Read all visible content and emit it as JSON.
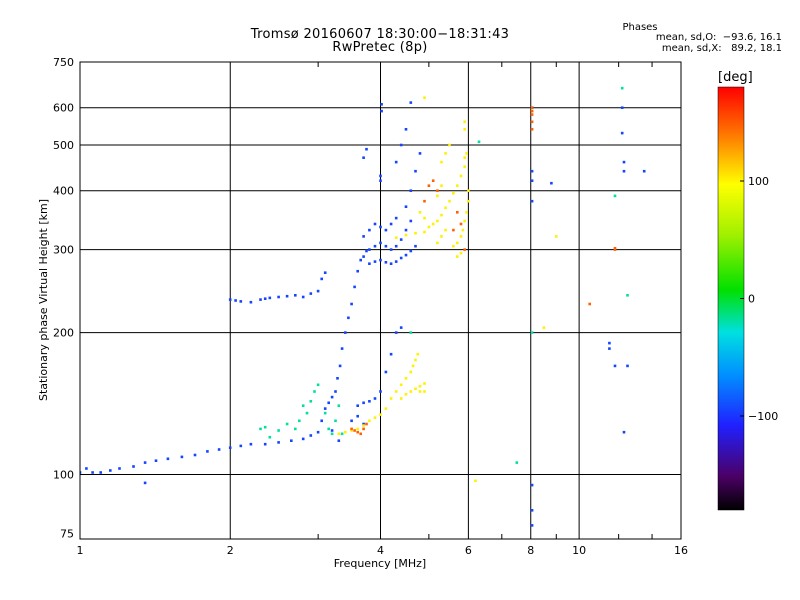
{
  "header": {
    "title_line1": "Tromsø 20160607 18:30:00−18:31:43",
    "title_line2": "RwPretec (8p)",
    "stats_title": "Phases",
    "stats_o": "mean, sd,O:  −93.6, 16.1",
    "stats_x": "mean, sd,X:   89.2, 18.1"
  },
  "colorbar": {
    "label": "[deg]",
    "ticks": [
      "100",
      "0",
      "−100"
    ],
    "tick_values": [
      100,
      0,
      -100
    ],
    "range": [
      -180,
      180
    ]
  },
  "chart_data": {
    "type": "scatter",
    "xlabel": "Frequency [MHz]",
    "ylabel": "Stationary phase Virtual Height [km]",
    "x_scale": "log",
    "y_scale": "log",
    "xlim": [
      1,
      16
    ],
    "ylim": [
      73,
      750
    ],
    "x_ticks": [
      1,
      2,
      4,
      6,
      8,
      10,
      16
    ],
    "x_tick_labels": [
      "1",
      "2",
      "4",
      "6",
      "8",
      "10",
      "16"
    ],
    "y_ticks": [
      75,
      100,
      200,
      300,
      400,
      500,
      600,
      750
    ],
    "y_tick_labels": [
      "75",
      "100",
      "200",
      "300",
      "400",
      "500",
      "600",
      "750"
    ],
    "grid": true,
    "series": [
      {
        "phase_group": "O",
        "color_value": -95,
        "points": [
          [
            1.0,
            101
          ],
          [
            1.03,
            103
          ],
          [
            1.06,
            101
          ],
          [
            1.1,
            101
          ],
          [
            1.15,
            102
          ],
          [
            1.2,
            103
          ],
          [
            1.28,
            104
          ],
          [
            1.35,
            106
          ],
          [
            1.42,
            107
          ],
          [
            1.5,
            108
          ],
          [
            1.6,
            109
          ],
          [
            1.7,
            110
          ],
          [
            1.8,
            112
          ],
          [
            1.9,
            113
          ],
          [
            2.0,
            114
          ],
          [
            2.1,
            115
          ],
          [
            2.2,
            116
          ],
          [
            2.35,
            116
          ],
          [
            2.5,
            117
          ],
          [
            2.65,
            118
          ],
          [
            2.8,
            119
          ],
          [
            2.9,
            121
          ],
          [
            3.0,
            123
          ],
          [
            3.05,
            130
          ],
          [
            3.1,
            138
          ],
          [
            3.15,
            142
          ],
          [
            3.2,
            146
          ],
          [
            3.25,
            150
          ],
          [
            3.28,
            160
          ],
          [
            3.32,
            170
          ],
          [
            3.35,
            185
          ],
          [
            3.4,
            200
          ],
          [
            3.45,
            215
          ],
          [
            3.5,
            230
          ],
          [
            3.55,
            250
          ],
          [
            3.6,
            270
          ],
          [
            3.65,
            285
          ],
          [
            3.7,
            290
          ],
          [
            3.75,
            298
          ],
          [
            3.8,
            300
          ],
          [
            3.9,
            305
          ],
          [
            4.0,
            310
          ],
          [
            4.1,
            305
          ],
          [
            4.2,
            300
          ],
          [
            4.3,
            305
          ],
          [
            4.4,
            315
          ],
          [
            4.5,
            330
          ],
          [
            4.6,
            345
          ],
          [
            3.8,
            280
          ],
          [
            3.9,
            283
          ],
          [
            4.0,
            285
          ],
          [
            4.1,
            282
          ],
          [
            4.2,
            280
          ],
          [
            4.3,
            283
          ],
          [
            4.4,
            288
          ],
          [
            4.5,
            292
          ],
          [
            4.6,
            298
          ],
          [
            4.7,
            305
          ],
          [
            3.7,
            320
          ],
          [
            3.8,
            330
          ],
          [
            3.9,
            340
          ],
          [
            4.0,
            335
          ],
          [
            4.1,
            330
          ],
          [
            4.2,
            340
          ],
          [
            4.3,
            350
          ],
          [
            4.5,
            370
          ],
          [
            4.6,
            400
          ],
          [
            4.7,
            440
          ],
          [
            4.8,
            480
          ],
          [
            4.3,
            460
          ],
          [
            4.4,
            500
          ],
          [
            4.5,
            540
          ],
          [
            4.0,
            420
          ],
          [
            4.0,
            430
          ],
          [
            4.02,
            590
          ],
          [
            4.02,
            610
          ],
          [
            4.6,
            615
          ],
          [
            3.7,
            470
          ],
          [
            3.75,
            490
          ],
          [
            2.0,
            235
          ],
          [
            2.05,
            234
          ],
          [
            2.1,
            233
          ],
          [
            2.2,
            232
          ],
          [
            2.3,
            235
          ],
          [
            2.35,
            236
          ],
          [
            2.4,
            237
          ],
          [
            2.5,
            238
          ],
          [
            2.6,
            239
          ],
          [
            2.7,
            240
          ],
          [
            2.8,
            238
          ],
          [
            2.9,
            242
          ],
          [
            3.0,
            245
          ],
          [
            3.05,
            260
          ],
          [
            3.1,
            268
          ],
          [
            3.6,
            140
          ],
          [
            3.7,
            142
          ],
          [
            3.8,
            143
          ],
          [
            3.9,
            145
          ],
          [
            4.0,
            150
          ],
          [
            4.1,
            165
          ],
          [
            4.2,
            180
          ],
          [
            4.3,
            200
          ],
          [
            4.4,
            205
          ],
          [
            3.5,
            130
          ],
          [
            3.6,
            133
          ],
          [
            3.7,
            128
          ],
          [
            3.3,
            118
          ],
          [
            3.2,
            124
          ],
          [
            1.35,
            96
          ],
          [
            8.05,
            95
          ],
          [
            8.05,
            84
          ],
          [
            8.05,
            78
          ],
          [
            8.05,
            380
          ],
          [
            8.05,
            420
          ],
          [
            8.05,
            440
          ],
          [
            8.05,
            600
          ],
          [
            8.8,
            415
          ],
          [
            12.2,
            530
          ],
          [
            12.2,
            600
          ],
          [
            12.3,
            440
          ],
          [
            12.3,
            460
          ],
          [
            13.5,
            440
          ],
          [
            12.3,
            123
          ],
          [
            11.8,
            170
          ],
          [
            12.5,
            170
          ],
          [
            11.5,
            185
          ],
          [
            11.5,
            190
          ]
        ]
      },
      {
        "phase_group": "X",
        "color_value": 100,
        "points": [
          [
            3.3,
            122
          ],
          [
            3.4,
            123
          ],
          [
            3.5,
            124
          ],
          [
            3.6,
            125
          ],
          [
            3.7,
            127
          ],
          [
            3.8,
            130
          ],
          [
            3.9,
            132
          ],
          [
            4.0,
            134
          ],
          [
            4.1,
            138
          ],
          [
            4.2,
            145
          ],
          [
            4.3,
            150
          ],
          [
            4.4,
            155
          ],
          [
            4.5,
            160
          ],
          [
            4.6,
            165
          ],
          [
            4.65,
            170
          ],
          [
            4.7,
            175
          ],
          [
            4.75,
            180
          ],
          [
            4.4,
            145
          ],
          [
            4.5,
            148
          ],
          [
            4.6,
            150
          ],
          [
            4.7,
            152
          ],
          [
            4.8,
            154
          ],
          [
            4.9,
            156
          ],
          [
            4.8,
            150
          ],
          [
            4.9,
            150
          ],
          [
            4.3,
            318
          ],
          [
            4.5,
            322
          ],
          [
            4.7,
            325
          ],
          [
            4.9,
            327
          ],
          [
            5.0,
            335
          ],
          [
            5.1,
            340
          ],
          [
            5.2,
            345
          ],
          [
            5.3,
            355
          ],
          [
            5.4,
            368
          ],
          [
            5.5,
            380
          ],
          [
            5.6,
            395
          ],
          [
            5.7,
            410
          ],
          [
            5.8,
            430
          ],
          [
            5.9,
            450
          ],
          [
            5.9,
            470
          ],
          [
            5.95,
            480
          ],
          [
            5.6,
            305
          ],
          [
            5.7,
            310
          ],
          [
            5.8,
            320
          ],
          [
            5.85,
            330
          ],
          [
            5.9,
            345
          ],
          [
            5.95,
            360
          ],
          [
            6.0,
            380
          ],
          [
            6.0,
            400
          ],
          [
            5.7,
            290
          ],
          [
            5.8,
            295
          ],
          [
            5.2,
            310
          ],
          [
            5.3,
            320
          ],
          [
            5.4,
            330
          ],
          [
            5.2,
            390
          ],
          [
            5.3,
            410
          ],
          [
            5.3,
            460
          ],
          [
            5.4,
            480
          ],
          [
            5.5,
            500
          ],
          [
            4.9,
            630
          ],
          [
            5.9,
            540
          ],
          [
            5.9,
            560
          ],
          [
            4.9,
            350
          ],
          [
            4.8,
            360
          ],
          [
            6.2,
            97
          ],
          [
            9.0,
            320
          ],
          [
            8.5,
            205
          ]
        ]
      },
      {
        "phase_group": "mixed",
        "color_value": 150,
        "points": [
          [
            3.5,
            125
          ],
          [
            3.55,
            124
          ],
          [
            3.6,
            123
          ],
          [
            3.65,
            122
          ],
          [
            3.7,
            125
          ],
          [
            3.75,
            128
          ],
          [
            5.0,
            410
          ],
          [
            5.1,
            420
          ],
          [
            5.2,
            400
          ],
          [
            5.6,
            330
          ],
          [
            5.8,
            340
          ],
          [
            5.7,
            360
          ],
          [
            8.05,
            540
          ],
          [
            8.05,
            560
          ],
          [
            8.05,
            580
          ],
          [
            8.05,
            590
          ],
          [
            8.05,
            600
          ],
          [
            11.8,
            300
          ],
          [
            11.8,
            302
          ],
          [
            10.5,
            230
          ],
          [
            5.9,
            300
          ],
          [
            4.9,
            380
          ]
        ]
      },
      {
        "phase_group": "cyan",
        "color_value": -20,
        "points": [
          [
            2.9,
            143
          ],
          [
            2.95,
            150
          ],
          [
            3.0,
            155
          ],
          [
            2.85,
            135
          ],
          [
            2.8,
            140
          ],
          [
            2.75,
            130
          ],
          [
            2.7,
            125
          ],
          [
            2.6,
            128
          ],
          [
            2.5,
            124
          ],
          [
            2.4,
            120
          ],
          [
            3.1,
            135
          ],
          [
            3.15,
            125
          ],
          [
            3.2,
            122
          ],
          [
            3.25,
            130
          ],
          [
            3.3,
            140
          ],
          [
            3.35,
            122
          ],
          [
            6.3,
            508
          ],
          [
            11.8,
            390
          ],
          [
            12.2,
            660
          ],
          [
            12.5,
            240
          ],
          [
            4.6,
            200
          ],
          [
            2.3,
            125
          ],
          [
            2.35,
            126
          ],
          [
            8.05,
            200
          ],
          [
            7.5,
            106
          ]
        ]
      }
    ]
  }
}
